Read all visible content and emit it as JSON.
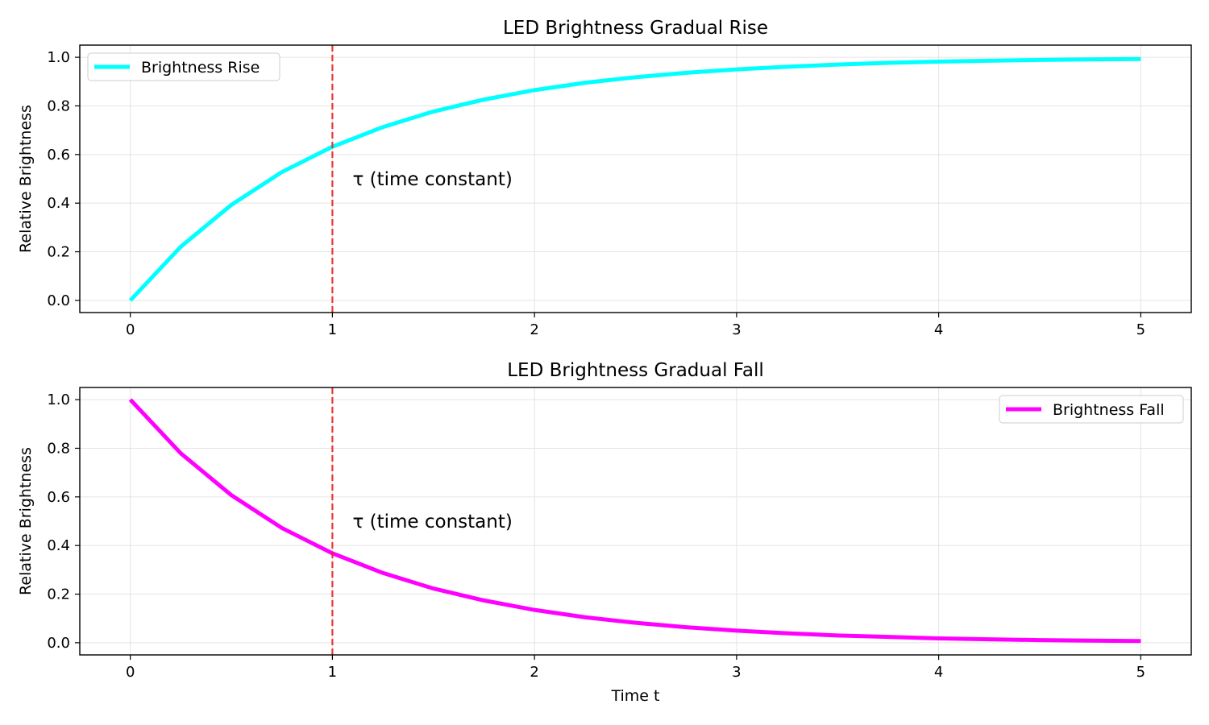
{
  "chart_data": [
    {
      "type": "line",
      "title": "LED Brightness Gradual Rise",
      "xlabel": "",
      "ylabel": "Relative Brightness",
      "xlim": [
        -0.25,
        5.25
      ],
      "ylim": [
        -0.05,
        1.05
      ],
      "xticks": [
        0,
        1,
        2,
        3,
        4,
        5
      ],
      "xtick_labels": [
        "0",
        "1",
        "2",
        "3",
        "4",
        "5"
      ],
      "yticks": [
        0,
        0.2,
        0.4,
        0.6,
        0.8,
        1.0
      ],
      "ytick_labels": [
        "0.0",
        "0.2",
        "0.4",
        "0.6",
        "0.8",
        "1.0"
      ],
      "grid": true,
      "legend_position": "upper-left",
      "series": [
        {
          "name": "Brightness Rise",
          "color": "#00ffff",
          "x": [
            0,
            0.25,
            0.5,
            0.75,
            1.0,
            1.25,
            1.5,
            1.75,
            2.0,
            2.25,
            2.5,
            2.75,
            3.0,
            3.25,
            3.5,
            3.75,
            4.0,
            4.25,
            4.5,
            4.75,
            5.0
          ],
          "values": [
            0,
            0.221,
            0.393,
            0.528,
            0.632,
            0.713,
            0.777,
            0.826,
            0.865,
            0.895,
            0.918,
            0.936,
            0.95,
            0.961,
            0.97,
            0.977,
            0.982,
            0.986,
            0.989,
            0.991,
            0.993
          ]
        }
      ],
      "vline": {
        "x": 1,
        "color": "#ee2222",
        "style": "dashed"
      },
      "annotation": {
        "text": "τ (time constant)",
        "x": 1.1,
        "y": 0.5
      }
    },
    {
      "type": "line",
      "title": "LED Brightness Gradual Fall",
      "xlabel": "Time t",
      "ylabel": "Relative Brightness",
      "xlim": [
        -0.25,
        5.25
      ],
      "ylim": [
        -0.05,
        1.05
      ],
      "xticks": [
        0,
        1,
        2,
        3,
        4,
        5
      ],
      "xtick_labels": [
        "0",
        "1",
        "2",
        "3",
        "4",
        "5"
      ],
      "yticks": [
        0,
        0.2,
        0.4,
        0.6,
        0.8,
        1.0
      ],
      "ytick_labels": [
        "0.0",
        "0.2",
        "0.4",
        "0.6",
        "0.8",
        "1.0"
      ],
      "grid": true,
      "legend_position": "upper-right",
      "series": [
        {
          "name": "Brightness Fall",
          "color": "#ff00ff",
          "x": [
            0,
            0.25,
            0.5,
            0.75,
            1.0,
            1.25,
            1.5,
            1.75,
            2.0,
            2.25,
            2.5,
            2.75,
            3.0,
            3.25,
            3.5,
            3.75,
            4.0,
            4.25,
            4.5,
            4.75,
            5.0
          ],
          "values": [
            1.0,
            0.779,
            0.607,
            0.472,
            0.368,
            0.287,
            0.223,
            0.174,
            0.135,
            0.105,
            0.082,
            0.064,
            0.05,
            0.039,
            0.03,
            0.024,
            0.018,
            0.014,
            0.011,
            0.009,
            0.007
          ]
        }
      ],
      "vline": {
        "x": 1,
        "color": "#ee2222",
        "style": "dashed"
      },
      "annotation": {
        "text": "τ (time constant)",
        "x": 1.1,
        "y": 0.5
      }
    }
  ]
}
